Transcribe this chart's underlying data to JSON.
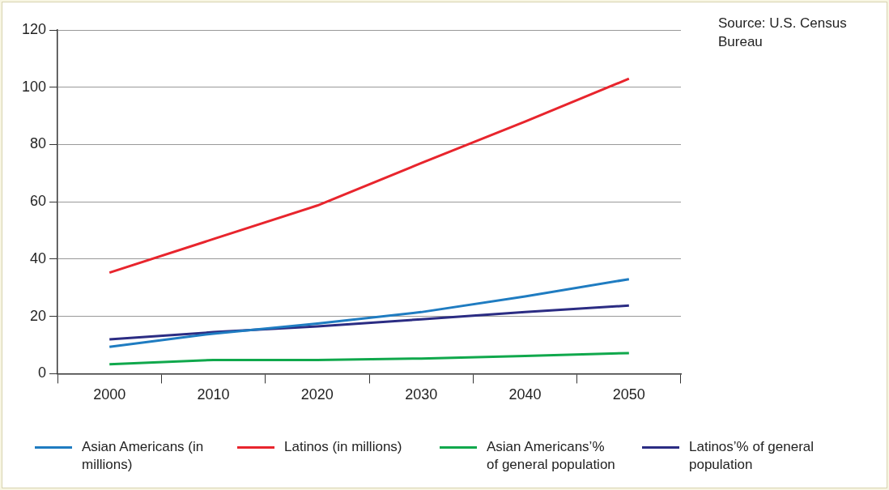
{
  "chart_data": {
    "type": "line",
    "categories": [
      "2000",
      "2010",
      "2020",
      "2030",
      "2040",
      "2050"
    ],
    "series": [
      {
        "name": "Asian Americans (in millions)",
        "color": "#1f7cc1",
        "values": [
          9.4,
          14,
          17.5,
          21.5,
          27,
          33
        ]
      },
      {
        "name": "Latinos (in millions)",
        "color": "#e8252d",
        "values": [
          35.3,
          47,
          58.7,
          73.5,
          88,
          103
        ]
      },
      {
        "name": "Asian Americans’% of general population",
        "color": "#10a84c",
        "values": [
          3.3,
          4.8,
          4.8,
          5.3,
          6.2,
          7.2
        ]
      },
      {
        "name": "Latinos’% of general population",
        "color": "#2b2c83",
        "values": [
          12,
          14.5,
          16.5,
          19,
          21.5,
          23.8
        ]
      }
    ],
    "ylim": [
      0,
      120
    ],
    "yticks": [
      0,
      20,
      40,
      60,
      80,
      100,
      120
    ],
    "grid": "y",
    "legend": "bottom",
    "marker": "none",
    "line_style": "solid",
    "annotations": [
      "Source: U.S. Census Bureau"
    ]
  }
}
